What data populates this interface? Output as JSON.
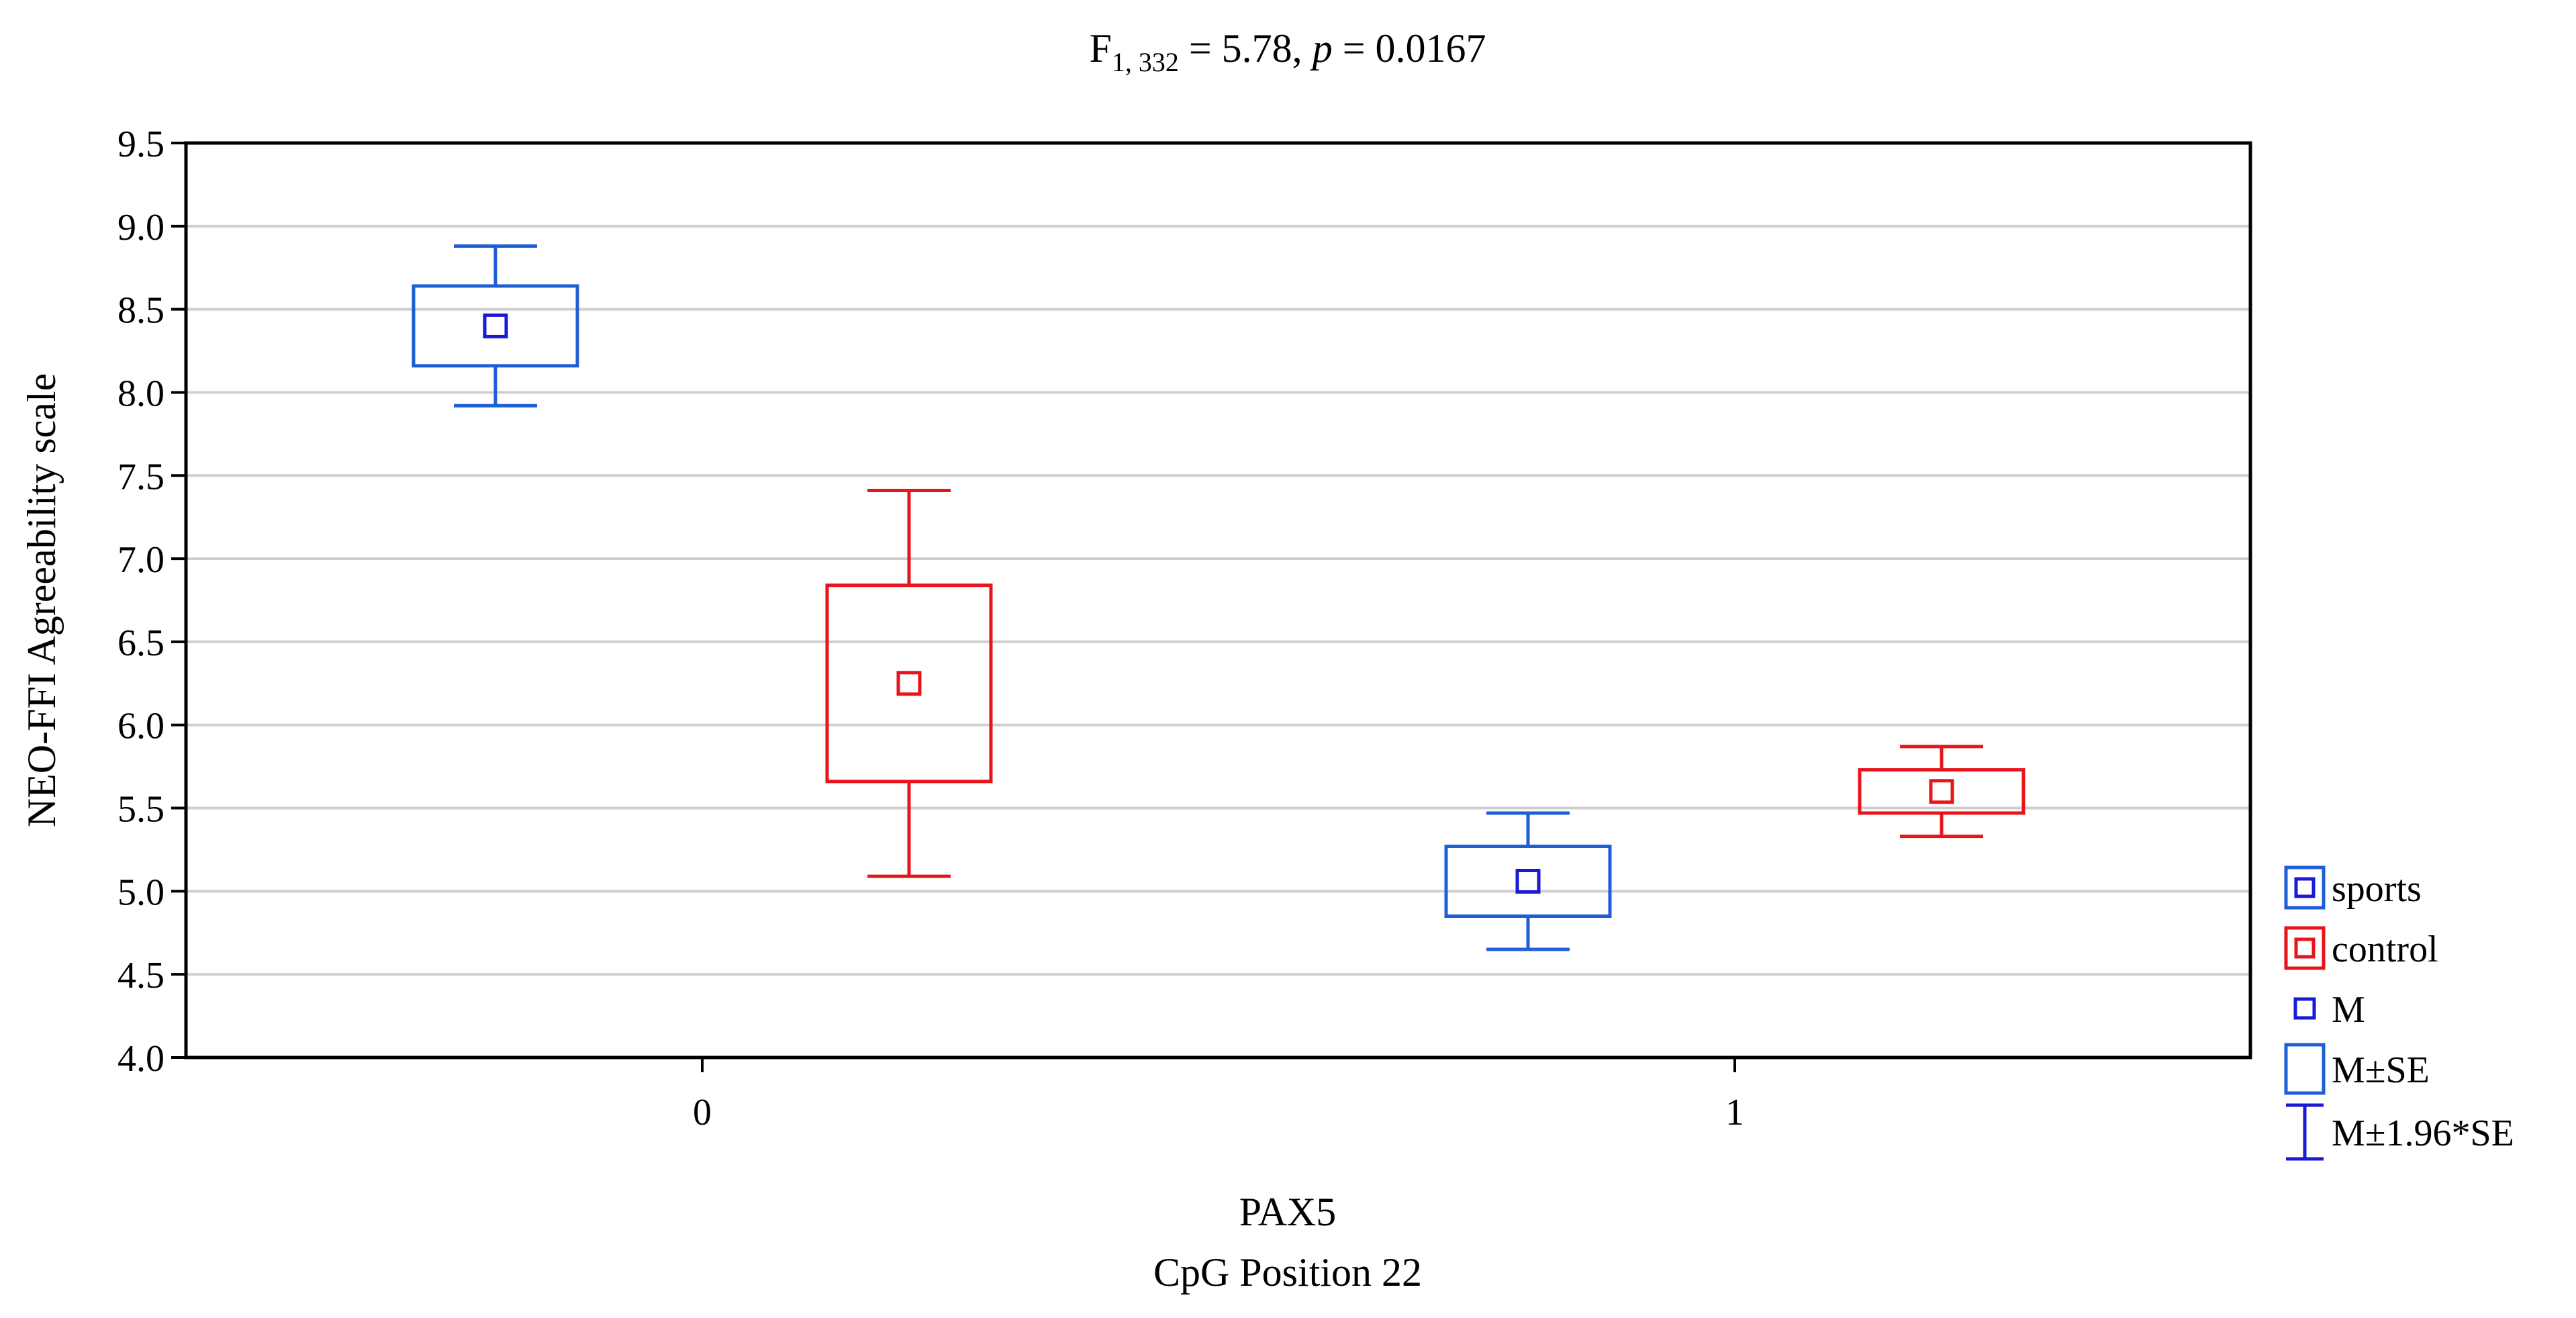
{
  "chart_data": {
    "type": "box",
    "title_parts": {
      "F": "F",
      "df": "1, 332",
      "eq": " = 5.78, ",
      "p": "p",
      "p_eq": " = 0.0167"
    },
    "xlabel_line1": "PAX5",
    "xlabel_line2": "CpG Position 22",
    "ylabel": "NEO-FFI Agreeability scale",
    "ylim": [
      4.0,
      9.5
    ],
    "yticks": [
      "4.0",
      "4.5",
      "5.0",
      "5.5",
      "6.0",
      "6.5",
      "7.0",
      "7.5",
      "8.0",
      "8.5",
      "9.0",
      "9.5"
    ],
    "categories": [
      "0",
      "1"
    ],
    "series": [
      {
        "name": "sports",
        "color": "#1f5fd6",
        "mean_color": "#1a1ad6",
        "points": [
          {
            "category": "0",
            "mean": 8.4,
            "se_low": 8.16,
            "se_high": 8.64,
            "ci_low": 7.92,
            "ci_high": 8.88
          },
          {
            "category": "1",
            "mean": 5.06,
            "se_low": 4.85,
            "se_high": 5.27,
            "ci_low": 4.65,
            "ci_high": 5.47
          }
        ]
      },
      {
        "name": "control",
        "color": "#e8141c",
        "mean_color": "#e8141c",
        "points": [
          {
            "category": "0",
            "mean": 6.25,
            "se_low": 5.66,
            "se_high": 6.84,
            "ci_low": 5.09,
            "ci_high": 7.41
          },
          {
            "category": "1",
            "mean": 5.6,
            "se_low": 5.47,
            "se_high": 5.73,
            "ci_low": 5.33,
            "ci_high": 5.87
          }
        ]
      }
    ],
    "legend": {
      "position": "right",
      "entries": [
        {
          "label": "sports",
          "kind": "series"
        },
        {
          "label": "control",
          "kind": "series"
        },
        {
          "label": "M",
          "kind": "mean"
        },
        {
          "label": "M±SE",
          "kind": "se"
        },
        {
          "label": "M±1.96*SE",
          "kind": "ci"
        }
      ]
    }
  }
}
